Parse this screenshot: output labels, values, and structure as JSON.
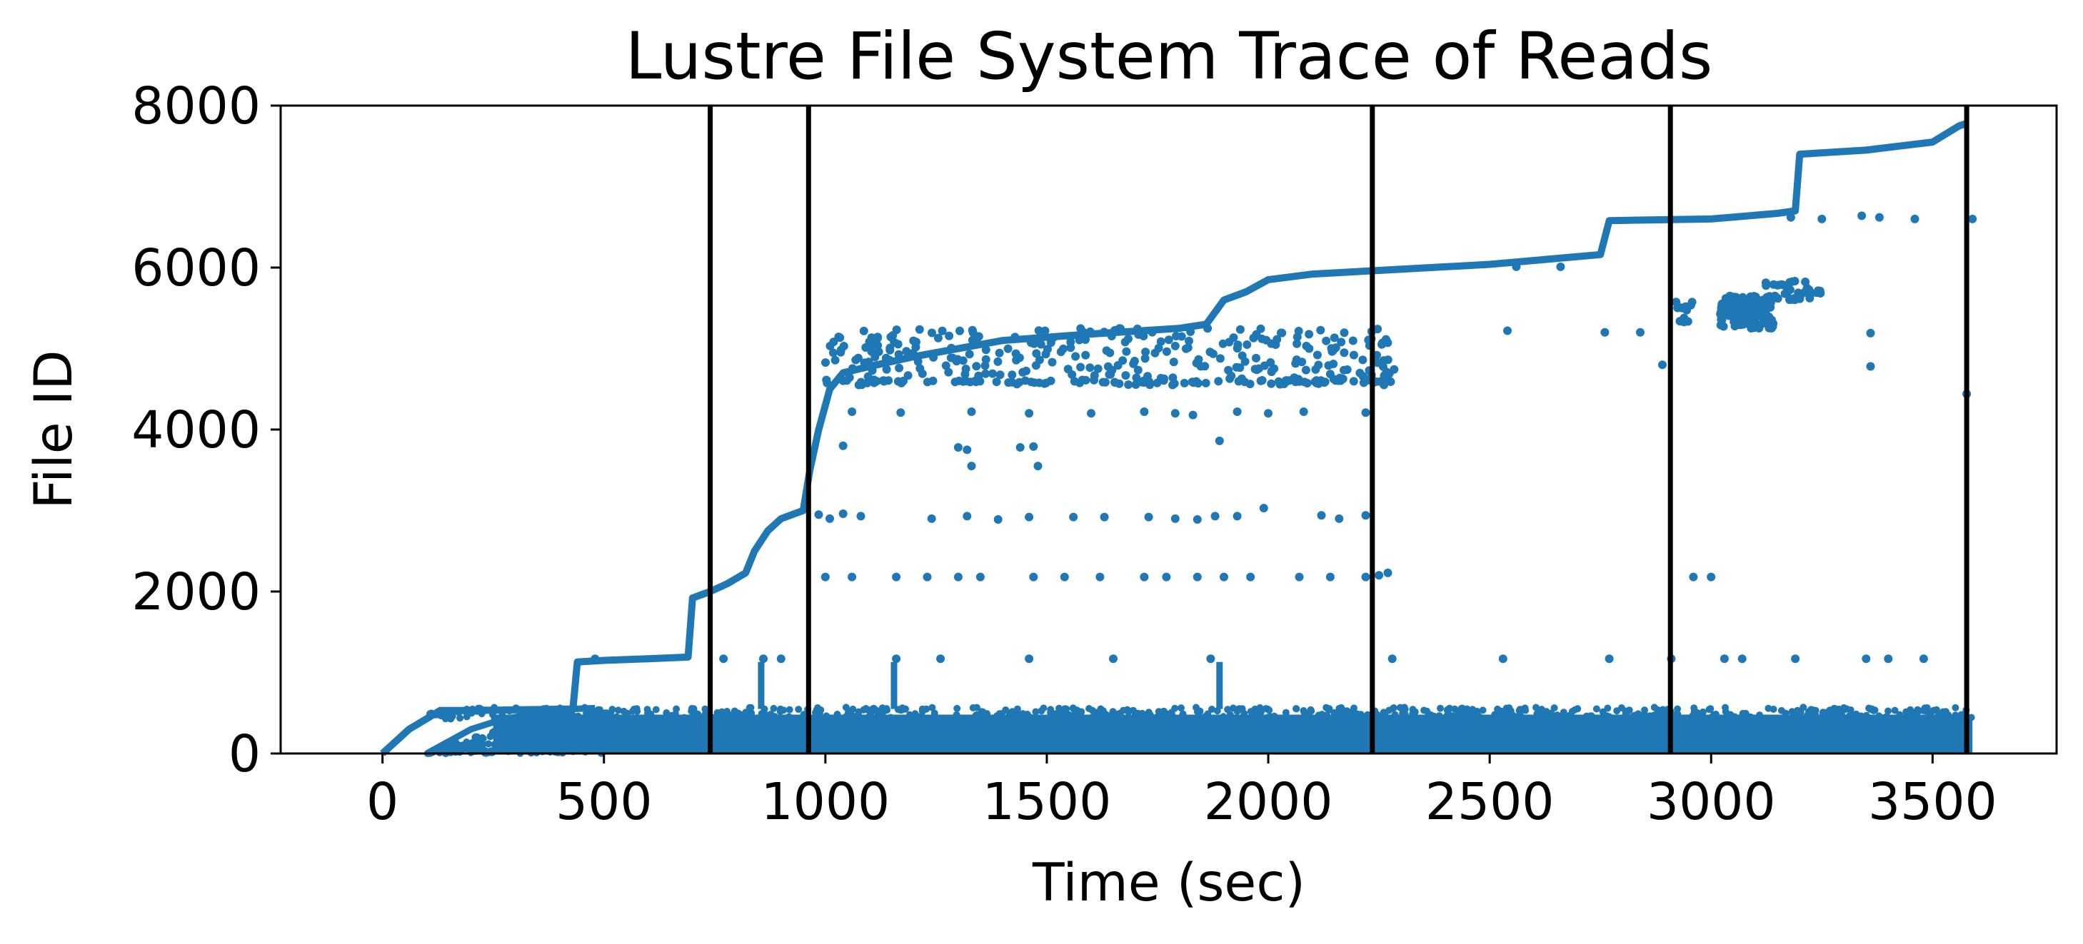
{
  "chart_data": {
    "type": "scatter",
    "title": "Lustre File System Trace of Reads",
    "xlabel": "Time (sec)",
    "ylabel": "File ID",
    "xlim": [
      -230,
      3780
    ],
    "ylim": [
      0,
      8000
    ],
    "xticks": [
      0,
      500,
      1000,
      1500,
      2000,
      2500,
      3000,
      3500
    ],
    "yticks": [
      0,
      2000,
      4000,
      6000,
      8000
    ],
    "xtick_labels": [
      "0",
      "500",
      "1000",
      "1500",
      "2000",
      "2500",
      "3000",
      "3500"
    ],
    "ytick_labels": [
      "0",
      "2000",
      "4000",
      "6000",
      "8000"
    ],
    "grid": false,
    "point_color": "#1f77b4",
    "vline_color": "#000000",
    "vertical_lines": [
      740,
      962,
      2235,
      2908,
      3577
    ],
    "series": [
      {
        "name": "main-ascending-trace",
        "points": [
          [
            0,
            0
          ],
          [
            30,
            150
          ],
          [
            60,
            300
          ],
          [
            100,
            430
          ],
          [
            130,
            530
          ],
          [
            200,
            530
          ],
          [
            430,
            550
          ],
          [
            440,
            1130
          ],
          [
            500,
            1150
          ],
          [
            600,
            1170
          ],
          [
            690,
            1190
          ],
          [
            700,
            1920
          ],
          [
            740,
            2000
          ],
          [
            780,
            2100
          ],
          [
            820,
            2230
          ],
          [
            840,
            2500
          ],
          [
            870,
            2750
          ],
          [
            900,
            2900
          ],
          [
            950,
            3000
          ],
          [
            965,
            3500
          ],
          [
            985,
            4000
          ],
          [
            1010,
            4500
          ],
          [
            1040,
            4700
          ],
          [
            1100,
            4780
          ],
          [
            1200,
            4900
          ],
          [
            1400,
            5100
          ],
          [
            1600,
            5180
          ],
          [
            1800,
            5250
          ],
          [
            1860,
            5300
          ],
          [
            1900,
            5600
          ],
          [
            1950,
            5700
          ],
          [
            2000,
            5850
          ],
          [
            2100,
            5920
          ],
          [
            2235,
            5960
          ],
          [
            2500,
            6040
          ],
          [
            2750,
            6160
          ],
          [
            2770,
            6580
          ],
          [
            3000,
            6600
          ],
          [
            3150,
            6670
          ],
          [
            3190,
            6700
          ],
          [
            3200,
            7400
          ],
          [
            3350,
            7450
          ],
          [
            3500,
            7550
          ],
          [
            3560,
            7750
          ],
          [
            3577,
            7780
          ]
        ]
      },
      {
        "name": "secondary-ascending-trace",
        "points": [
          [
            100,
            0
          ],
          [
            150,
            150
          ],
          [
            200,
            300
          ],
          [
            270,
            420
          ],
          [
            350,
            500
          ],
          [
            430,
            550
          ],
          [
            480,
            560
          ]
        ]
      },
      {
        "name": "dense-band-0-550",
        "x_range": [
          100,
          3590
        ],
        "y_range": [
          0,
          550
        ]
      },
      {
        "name": "scattered-cluster-4500-5300",
        "x_range": [
          1000,
          2290
        ],
        "y_range": [
          4550,
          5300
        ]
      },
      {
        "name": "scattered-cluster-5200-5850",
        "x_range": [
          2920,
          3250
        ],
        "y_range": [
          5200,
          5850
        ]
      },
      {
        "name": "band-y1170",
        "points": [
          [
            480,
            1170
          ],
          [
            770,
            1170
          ],
          [
            860,
            1170
          ],
          [
            900,
            1170
          ],
          [
            1160,
            1170
          ],
          [
            1260,
            1170
          ],
          [
            1460,
            1170
          ],
          [
            1650,
            1170
          ],
          [
            1870,
            1170
          ],
          [
            2280,
            1170
          ],
          [
            2530,
            1170
          ],
          [
            2770,
            1170
          ],
          [
            2910,
            1170
          ],
          [
            3030,
            1170
          ],
          [
            3070,
            1170
          ],
          [
            3190,
            1170
          ],
          [
            3350,
            1170
          ],
          [
            3400,
            1170
          ],
          [
            3480,
            1170
          ]
        ]
      },
      {
        "name": "band-y2180",
        "points": [
          [
            1000,
            2180
          ],
          [
            1060,
            2180
          ],
          [
            1160,
            2180
          ],
          [
            1230,
            2180
          ],
          [
            1300,
            2180
          ],
          [
            1350,
            2180
          ],
          [
            1470,
            2180
          ],
          [
            1540,
            2180
          ],
          [
            1620,
            2180
          ],
          [
            1720,
            2180
          ],
          [
            1770,
            2180
          ],
          [
            1840,
            2180
          ],
          [
            1900,
            2180
          ],
          [
            1960,
            2180
          ],
          [
            2070,
            2180
          ],
          [
            2140,
            2180
          ],
          [
            2220,
            2180
          ],
          [
            2250,
            2200
          ],
          [
            2270,
            2230
          ],
          [
            2960,
            2180
          ],
          [
            3000,
            2180
          ]
        ]
      },
      {
        "name": "band-y2920",
        "points": [
          [
            985,
            2950
          ],
          [
            1010,
            2900
          ],
          [
            1040,
            2960
          ],
          [
            1080,
            2930
          ],
          [
            1240,
            2900
          ],
          [
            1320,
            2930
          ],
          [
            1390,
            2890
          ],
          [
            1460,
            2920
          ],
          [
            1560,
            2920
          ],
          [
            1630,
            2920
          ],
          [
            1730,
            2920
          ],
          [
            1790,
            2900
          ],
          [
            1840,
            2890
          ],
          [
            1880,
            2930
          ],
          [
            1930,
            2930
          ],
          [
            1990,
            3030
          ],
          [
            2120,
            2940
          ],
          [
            2160,
            2900
          ],
          [
            2220,
            2940
          ]
        ]
      },
      {
        "name": "band-y3800",
        "points": [
          [
            1040,
            3800
          ],
          [
            1300,
            3780
          ],
          [
            1320,
            3750
          ],
          [
            1330,
            3550
          ],
          [
            1440,
            3780
          ],
          [
            1470,
            3790
          ],
          [
            1480,
            3550
          ],
          [
            1890,
            3860
          ]
        ]
      },
      {
        "name": "band-y4200",
        "points": [
          [
            1060,
            4220
          ],
          [
            1170,
            4210
          ],
          [
            1330,
            4220
          ],
          [
            1460,
            4200
          ],
          [
            1600,
            4200
          ],
          [
            1720,
            4220
          ],
          [
            1790,
            4200
          ],
          [
            1830,
            4180
          ],
          [
            1930,
            4220
          ],
          [
            2000,
            4200
          ],
          [
            2080,
            4220
          ],
          [
            2220,
            4210
          ]
        ]
      },
      {
        "name": "vertical-spikes",
        "points": [
          [
            855,
            550
          ],
          [
            855,
            700
          ],
          [
            855,
            900
          ],
          [
            855,
            1100
          ],
          [
            1155,
            550
          ],
          [
            1155,
            700
          ],
          [
            1155,
            900
          ],
          [
            1155,
            1100
          ],
          [
            1890,
            550
          ],
          [
            1890,
            700
          ],
          [
            1890,
            900
          ],
          [
            1890,
            1100
          ]
        ]
      },
      {
        "name": "late-outliers",
        "points": [
          [
            2540,
            5220
          ],
          [
            2760,
            5200
          ],
          [
            2840,
            5200
          ],
          [
            2890,
            4800
          ],
          [
            3360,
            4780
          ],
          [
            3360,
            5190
          ],
          [
            3180,
            6620
          ],
          [
            3250,
            6600
          ],
          [
            3340,
            6640
          ],
          [
            3380,
            6620
          ],
          [
            3460,
            6600
          ],
          [
            3590,
            6600
          ],
          [
            3577,
            4440
          ],
          [
            2660,
            6010
          ],
          [
            2560,
            6010
          ]
        ]
      }
    ]
  }
}
